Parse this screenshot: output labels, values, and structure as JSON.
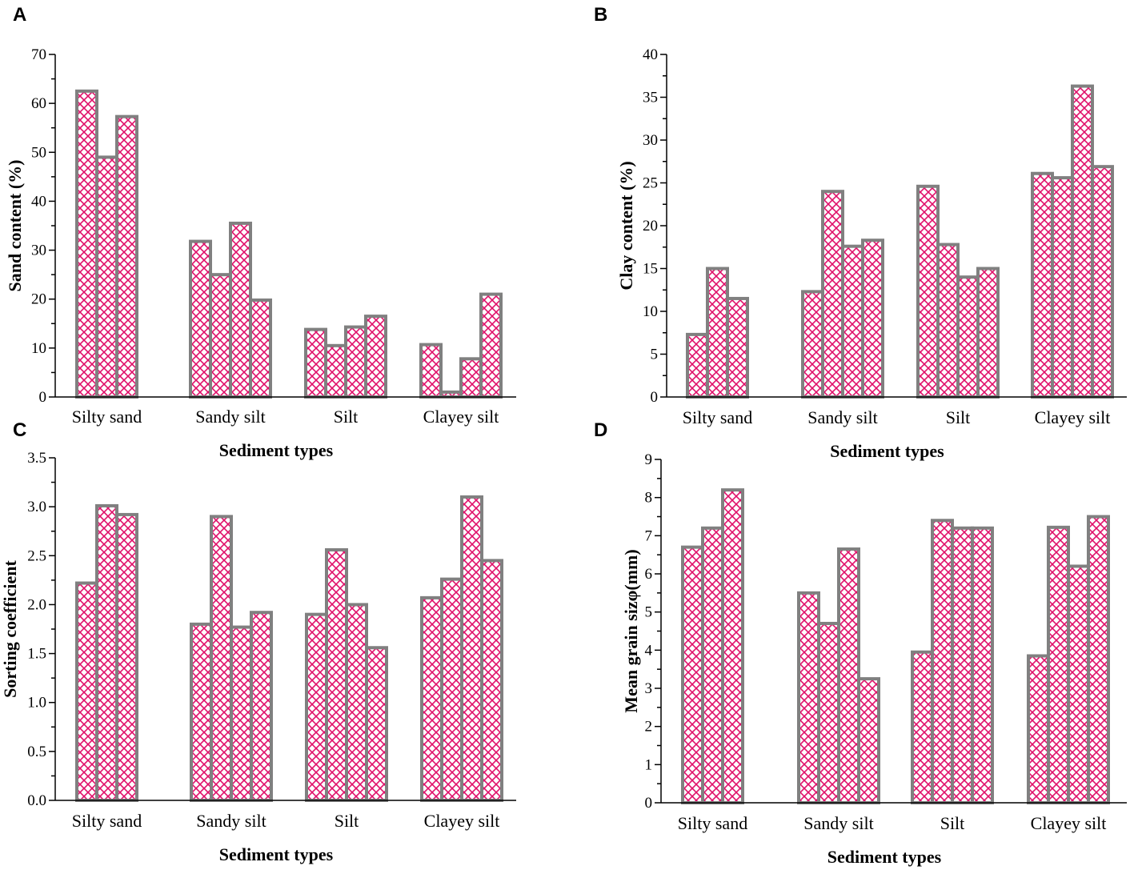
{
  "colors": {
    "hatch": "#e0106a",
    "bar_border": "#808080",
    "axis": "#000000"
  },
  "chart_data": [
    {
      "panel": "A",
      "type": "bar",
      "title": "",
      "xlabel": "Sediment types",
      "ylabel": "Sand content (%)",
      "ylim": [
        0,
        70
      ],
      "yticks": [
        "0",
        "10",
        "20",
        "30",
        "40",
        "50",
        "60",
        "70"
      ],
      "groups": [
        {
          "name": "Silty sand",
          "values": [
            62.5,
            49,
            57.3
          ]
        },
        {
          "name": "Sandy silt",
          "values": [
            31.8,
            25,
            35.5,
            19.8
          ]
        },
        {
          "name": "Silt",
          "values": [
            13.8,
            10.5,
            14.3,
            16.5
          ]
        },
        {
          "name": "Clayey silt",
          "values": [
            10.7,
            1,
            7.8,
            21
          ]
        }
      ]
    },
    {
      "panel": "B",
      "type": "bar",
      "title": "",
      "xlabel": "Sediment types",
      "ylabel": "Clay content (%)",
      "ylim": [
        0,
        40
      ],
      "yticks": [
        "0",
        "5",
        "10",
        "15",
        "20",
        "25",
        "30",
        "35",
        "40"
      ],
      "groups": [
        {
          "name": "Silty sand",
          "values": [
            7.3,
            15,
            11.5
          ]
        },
        {
          "name": "Sandy silt",
          "values": [
            12.3,
            24,
            17.6,
            18.3
          ]
        },
        {
          "name": "Silt",
          "values": [
            24.6,
            17.8,
            14,
            15
          ]
        },
        {
          "name": "Clayey silt",
          "values": [
            26.1,
            25.6,
            36.3,
            26.9
          ]
        }
      ]
    },
    {
      "panel": "C",
      "type": "bar",
      "title": "",
      "xlabel": "Sediment types",
      "ylabel": "Sorting coefficient",
      "ylim": [
        0,
        3.5
      ],
      "yticks": [
        "0.0",
        "0.5",
        "1.0",
        "1.5",
        "2.0",
        "2.5",
        "3.0",
        "3.5"
      ],
      "groups": [
        {
          "name": "Silty sand",
          "values": [
            2.22,
            3.01,
            2.92
          ]
        },
        {
          "name": "Sandy silt",
          "values": [
            1.8,
            2.9,
            1.77,
            1.92
          ]
        },
        {
          "name": "Silt",
          "values": [
            1.9,
            2.56,
            2.0,
            1.56
          ]
        },
        {
          "name": "Clayey silt",
          "values": [
            2.07,
            2.26,
            3.1,
            2.45
          ]
        }
      ]
    },
    {
      "panel": "D",
      "type": "bar",
      "title": "",
      "xlabel": "Sediment types",
      "ylabel": "Mean grain sizφ(mm)",
      "ylim": [
        0,
        9
      ],
      "yticks": [
        "0",
        "1",
        "2",
        "3",
        "4",
        "5",
        "6",
        "7",
        "8",
        "9"
      ],
      "groups": [
        {
          "name": "Silty sand",
          "values": [
            6.7,
            7.2,
            8.2
          ]
        },
        {
          "name": "Sandy silt",
          "values": [
            5.5,
            4.7,
            6.65,
            3.25
          ]
        },
        {
          "name": "Silt",
          "values": [
            3.95,
            7.4,
            7.2,
            7.2
          ]
        },
        {
          "name": "Clayey silt",
          "values": [
            3.85,
            7.22,
            6.2,
            7.5
          ]
        }
      ]
    }
  ]
}
